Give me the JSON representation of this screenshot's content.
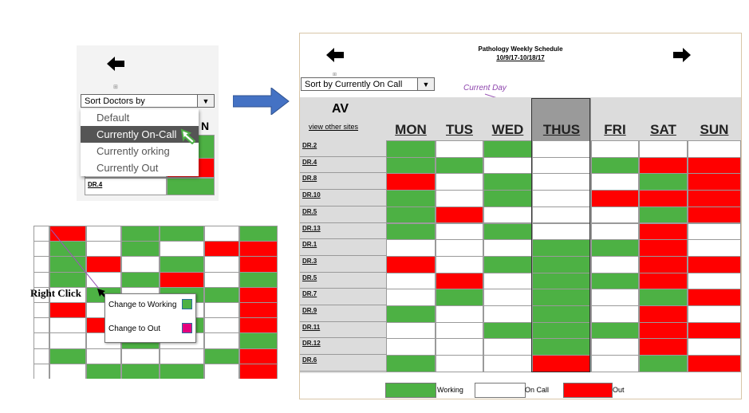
{
  "left_panel": {
    "sort_label": "Sort Doctors by",
    "dropdown_arrow": "▼",
    "menu_items": [
      "Default",
      "Currently On-Call",
      "Currently orking",
      "Currently Out"
    ],
    "selected_index": 1,
    "partial_header": "N",
    "partial_row": "DR.4",
    "back_arrow": "back-arrow-icon"
  },
  "context_panel": {
    "right_click_label": "Right Click",
    "menu_items": [
      {
        "label": "Change to Working",
        "swatch": "#4db144"
      },
      {
        "label": "Change to Out",
        "swatch": "#e5007d"
      }
    ]
  },
  "schedule": {
    "title": "Pathology Weekly Schedule",
    "date_range": "10/9/17-10/18/17",
    "sort_label": "Sort by Currently On Call",
    "dropdown_arrow": "▼",
    "current_day_label": "Current Day",
    "site": "AV",
    "view_other_sites": "view other sites",
    "days": [
      "MON",
      "TUS",
      "WED",
      "THUS",
      "FRI",
      "SAT",
      "SUN"
    ],
    "current_day_index": 3,
    "rows": [
      {
        "doctor": "DR.2",
        "status": [
          "g",
          "w",
          "g",
          "w",
          "w",
          "w",
          "w"
        ]
      },
      {
        "doctor": "DR.4",
        "status": [
          "g",
          "g",
          "w",
          "w",
          "g",
          "r",
          "r"
        ]
      },
      {
        "doctor": "DR.8",
        "status": [
          "r",
          "w",
          "g",
          "w",
          "w",
          "g",
          "r"
        ]
      },
      {
        "doctor": "DR.10",
        "status": [
          "g",
          "w",
          "g",
          "w",
          "r",
          "r",
          "r"
        ]
      },
      {
        "doctor": "DR.5",
        "status": [
          "g",
          "r",
          "w",
          "w",
          "w",
          "g",
          "r"
        ]
      },
      {
        "doctor": "DR.13",
        "status": [
          "g",
          "w",
          "g",
          "w",
          "w",
          "r",
          "w"
        ]
      },
      {
        "doctor": "DR.1",
        "status": [
          "w",
          "w",
          "w",
          "g",
          "g",
          "r",
          "w"
        ]
      },
      {
        "doctor": "DR.3",
        "status": [
          "r",
          "w",
          "g",
          "g",
          "w",
          "r",
          "r"
        ]
      },
      {
        "doctor": "DR.5",
        "status": [
          "w",
          "r",
          "w",
          "g",
          "g",
          "r",
          "w"
        ]
      },
      {
        "doctor": "DR.7",
        "status": [
          "w",
          "g",
          "w",
          "g",
          "w",
          "g",
          "r"
        ]
      },
      {
        "doctor": "DR.9",
        "status": [
          "g",
          "w",
          "w",
          "g",
          "w",
          "r",
          "w"
        ]
      },
      {
        "doctor": "DR.11",
        "status": [
          "w",
          "w",
          "g",
          "g",
          "g",
          "r",
          "r"
        ]
      },
      {
        "doctor": "DR.12",
        "status": [
          "w",
          "w",
          "w",
          "g",
          "w",
          "r",
          "w"
        ]
      },
      {
        "doctor": "DR.6",
        "status": [
          "g",
          "w",
          "w",
          "r",
          "w",
          "g",
          "r"
        ]
      }
    ],
    "legend": [
      {
        "label": "Working",
        "color": "#4db144"
      },
      {
        "label": "On Call",
        "color": "#ffffff"
      },
      {
        "label": "Out",
        "color": "#ff0000"
      }
    ]
  },
  "colors": {
    "working": "#4db144",
    "on_call": "#ffffff",
    "out": "#ff0000",
    "selected_menu": "#555555",
    "arrow": "#4472c4"
  }
}
